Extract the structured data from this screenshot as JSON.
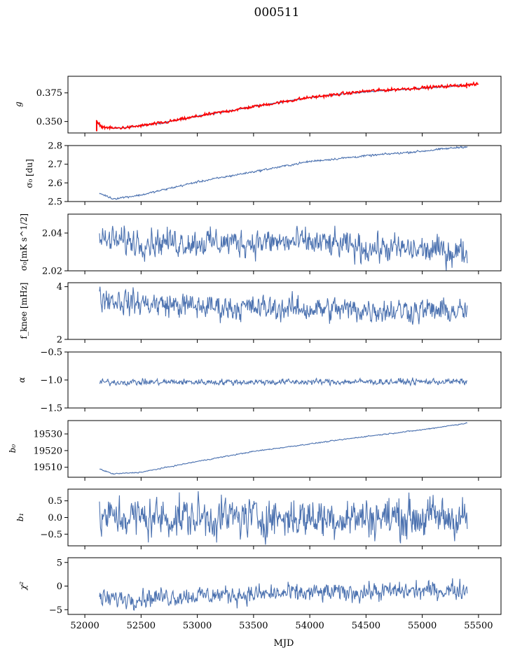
{
  "figure": {
    "title": "000511"
  },
  "colors": {
    "series": "#4c72b0",
    "overlay": "#ff0000"
  },
  "chart_data": [
    {
      "id": "g",
      "type": "line",
      "ylabel": "g",
      "ylim": [
        0.34,
        0.3895
      ],
      "yticks": [
        0.35,
        0.375
      ],
      "ytick_labels": [
        "0.350",
        "0.375"
      ],
      "series": [
        {
          "name": "g",
          "color": "#4c72b0",
          "noise": 0.0003,
          "x_range": [
            52100,
            55400
          ],
          "knots": [
            [
              52100,
              0.349
            ],
            [
              52150,
              0.3455
            ],
            [
              52250,
              0.344
            ],
            [
              52400,
              0.345
            ],
            [
              52700,
              0.349
            ],
            [
              53000,
              0.3545
            ],
            [
              53500,
              0.363
            ],
            [
              54000,
              0.371
            ],
            [
              54500,
              0.376
            ],
            [
              55000,
              0.379
            ],
            [
              55400,
              0.382
            ]
          ]
        },
        {
          "name": "g (red)",
          "color": "#ff0000",
          "noise": 0.0006,
          "x_range": [
            52100,
            55500
          ],
          "knots": [
            [
              52100,
              0.35
            ],
            [
              52150,
              0.3455
            ],
            [
              52250,
              0.344
            ],
            [
              52400,
              0.345
            ],
            [
              52700,
              0.349
            ],
            [
              53000,
              0.3545
            ],
            [
              53500,
              0.363
            ],
            [
              54000,
              0.371
            ],
            [
              54500,
              0.3765
            ],
            [
              55000,
              0.3795
            ],
            [
              55500,
              0.3825
            ]
          ]
        }
      ]
    },
    {
      "id": "sigma0",
      "type": "line",
      "ylabel": "σ₀ [du]",
      "ylim": [
        2.5,
        2.8
      ],
      "yticks": [
        2.5,
        2.6,
        2.7,
        2.8
      ],
      "ytick_labels": [
        "2.5",
        "2.6",
        "2.7",
        "2.8"
      ],
      "series": [
        {
          "name": "sigma0",
          "color": "#4c72b0",
          "noise": 0.0025,
          "x_range": [
            52130,
            55400
          ],
          "knots": [
            [
              52130,
              2.545
            ],
            [
              52250,
              2.515
            ],
            [
              52500,
              2.535
            ],
            [
              53000,
              2.605
            ],
            [
              53500,
              2.66
            ],
            [
              54000,
              2.715
            ],
            [
              54500,
              2.745
            ],
            [
              55000,
              2.77
            ],
            [
              55400,
              2.795
            ]
          ]
        }
      ]
    },
    {
      "id": "sigma0_mks",
      "type": "line",
      "ylabel": "σ₀[mK s^1/2]",
      "ylim": [
        2.02,
        2.05
      ],
      "yticks": [
        2.02,
        2.04
      ],
      "ytick_labels": [
        "2.02",
        "2.04"
      ],
      "series": [
        {
          "name": "sigma0 mKs",
          "color": "#4c72b0",
          "noise": 0.0034,
          "x_range": [
            52130,
            55400
          ],
          "knots": [
            [
              52130,
              2.036
            ],
            [
              53000,
              2.035
            ],
            [
              54000,
              2.035
            ],
            [
              54500,
              2.032
            ],
            [
              55000,
              2.031
            ],
            [
              55400,
              2.03
            ]
          ]
        }
      ]
    },
    {
      "id": "fknee",
      "type": "line",
      "ylabel": "f_knee [mHz]",
      "ylim": [
        2,
        4.15
      ],
      "yticks": [
        2,
        4
      ],
      "ytick_labels": [
        "2",
        "4"
      ],
      "series": [
        {
          "name": "fknee",
          "color": "#4c72b0",
          "noise": 0.22,
          "x_range": [
            52130,
            55400
          ],
          "knots": [
            [
              52130,
              3.6
            ],
            [
              52400,
              3.4
            ],
            [
              53000,
              3.25
            ],
            [
              54000,
              3.15
            ],
            [
              55000,
              3.1
            ],
            [
              55400,
              3.05
            ]
          ]
        }
      ]
    },
    {
      "id": "alpha",
      "type": "line",
      "ylabel": "α",
      "ylim": [
        -1.5,
        -0.5
      ],
      "yticks": [
        -1.5,
        -1.0,
        -0.5
      ],
      "ytick_labels": [
        "−1.5",
        "−1.0",
        "−0.5"
      ],
      "series": [
        {
          "name": "alpha",
          "color": "#4c72b0",
          "noise": 0.025,
          "x_range": [
            52130,
            55400
          ],
          "knots": [
            [
              52130,
              -1.04
            ],
            [
              55400,
              -1.03
            ]
          ]
        }
      ]
    },
    {
      "id": "b0",
      "type": "line",
      "ylabel": "b₀",
      "ylim": [
        19504,
        19538
      ],
      "yticks": [
        19510,
        19520,
        19530
      ],
      "ytick_labels": [
        "19510",
        "19520",
        "19530"
      ],
      "series": [
        {
          "name": "b0",
          "color": "#4c72b0",
          "noise": 0.15,
          "x_range": [
            52130,
            55400
          ],
          "knots": [
            [
              52130,
              19509
            ],
            [
              52250,
              19506
            ],
            [
              52500,
              19507
            ],
            [
              53000,
              19513.5
            ],
            [
              53500,
              19519.5
            ],
            [
              54000,
              19524
            ],
            [
              54500,
              19528.5
            ],
            [
              55000,
              19532.5
            ],
            [
              55400,
              19536.5
            ]
          ]
        }
      ]
    },
    {
      "id": "b1",
      "type": "line",
      "ylabel": "b₁",
      "ylim": [
        -0.85,
        0.85
      ],
      "yticks": [
        -0.5,
        0.0,
        0.5
      ],
      "ytick_labels": [
        "−0.5",
        "0.0",
        "0.5"
      ],
      "series": [
        {
          "name": "b1",
          "color": "#4c72b0",
          "noise": 0.28,
          "x_range": [
            52130,
            55400
          ],
          "knots": [
            [
              52130,
              0.0
            ],
            [
              55400,
              0.0
            ]
          ]
        }
      ]
    },
    {
      "id": "chi2",
      "type": "line",
      "ylabel": "χ²",
      "ylim": [
        -6,
        6
      ],
      "yticks": [
        -5,
        0,
        5
      ],
      "ytick_labels": [
        "−5",
        "0",
        "5"
      ],
      "series": [
        {
          "name": "chi2",
          "color": "#4c72b0",
          "noise": 0.9,
          "x_range": [
            52130,
            55400
          ],
          "knots": [
            [
              52130,
              -2.8
            ],
            [
              53000,
              -2.0
            ],
            [
              54000,
              -1.5
            ],
            [
              55000,
              -1.0
            ],
            [
              55400,
              -0.8
            ]
          ]
        }
      ]
    }
  ],
  "xaxis": {
    "label": "MJD",
    "xlim": [
      51850,
      55700
    ],
    "ticks": [
      52000,
      52500,
      53000,
      53500,
      54000,
      54500,
      55000,
      55500
    ],
    "tick_labels": [
      "52000",
      "52500",
      "53000",
      "53500",
      "54000",
      "54500",
      "55000",
      "55500"
    ]
  }
}
